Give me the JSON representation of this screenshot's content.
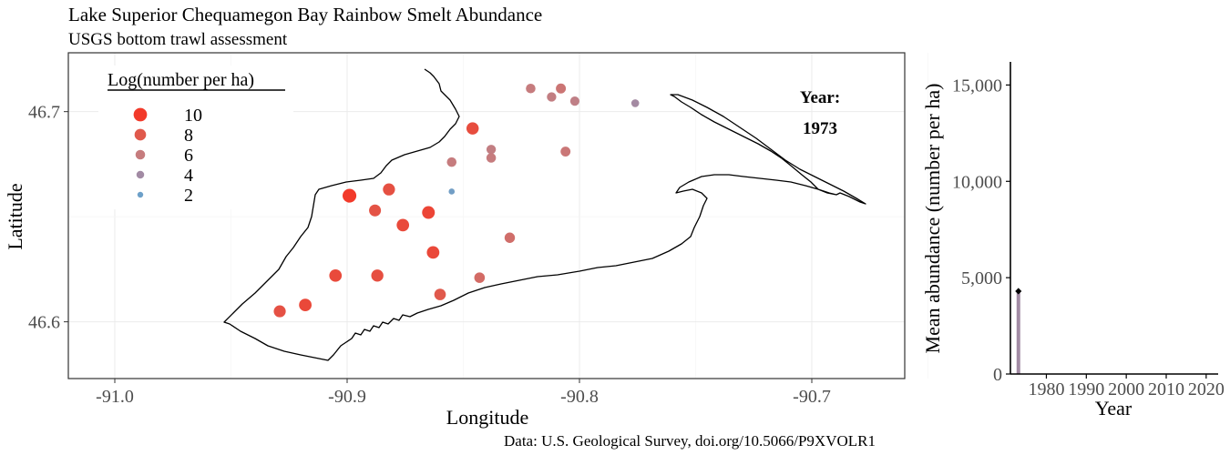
{
  "title": "Lake Superior Chequamegon Bay Rainbow Smelt Abundance",
  "subtitle": "USGS bottom trawl assessment",
  "caption": "Data: U.S. Geological Survey, doi.org/10.5066/P9XVOLR1",
  "year_label": "Year:",
  "year_value": "1973",
  "chart_data": [
    {
      "type": "scatter",
      "xlabel": "Longitude",
      "ylabel": "Latitude",
      "xlim": [
        -91.02,
        -90.66
      ],
      "ylim": [
        46.573,
        46.728
      ],
      "x_ticks": [
        -91.0,
        -90.9,
        -90.8,
        -90.7
      ],
      "x_tick_labels": [
        "-91.0",
        "-90.9",
        "-90.8",
        "-90.7"
      ],
      "y_ticks": [
        46.6,
        46.7
      ],
      "y_tick_labels": [
        "46.6",
        "46.7"
      ],
      "grid": true,
      "legend": {
        "title": "Log(number per ha)",
        "position": "top-left",
        "entries": [
          {
            "label": "10",
            "value": 10,
            "color": "#f23a2a"
          },
          {
            "label": "8",
            "value": 8,
            "color": "#e0594c"
          },
          {
            "label": "6",
            "value": 6,
            "color": "#c67c7e"
          },
          {
            "label": "4",
            "value": 4,
            "color": "#a28ba4"
          },
          {
            "label": "2",
            "value": 2,
            "color": "#6da0c9"
          }
        ]
      },
      "points": [
        {
          "lon": -90.821,
          "lat": 46.711,
          "log": 6.0
        },
        {
          "lon": -90.808,
          "lat": 46.711,
          "log": 6.4
        },
        {
          "lon": -90.812,
          "lat": 46.707,
          "log": 5.8
        },
        {
          "lon": -90.802,
          "lat": 46.705,
          "log": 5.6
        },
        {
          "lon": -90.776,
          "lat": 46.704,
          "log": 4.1
        },
        {
          "lon": -90.846,
          "lat": 46.692,
          "log": 8.8
        },
        {
          "lon": -90.838,
          "lat": 46.682,
          "log": 5.8
        },
        {
          "lon": -90.838,
          "lat": 46.678,
          "log": 6.0
        },
        {
          "lon": -90.806,
          "lat": 46.681,
          "log": 6.3
        },
        {
          "lon": -90.855,
          "lat": 46.676,
          "log": 6.0
        },
        {
          "lon": -90.855,
          "lat": 46.662,
          "log": 2.2
        },
        {
          "lon": -90.882,
          "lat": 46.663,
          "log": 8.6
        },
        {
          "lon": -90.899,
          "lat": 46.66,
          "log": 10.4
        },
        {
          "lon": -90.888,
          "lat": 46.653,
          "log": 8.4
        },
        {
          "lon": -90.865,
          "lat": 46.652,
          "log": 9.3
        },
        {
          "lon": -90.876,
          "lat": 46.646,
          "log": 9.0
        },
        {
          "lon": -90.83,
          "lat": 46.64,
          "log": 6.8
        },
        {
          "lon": -90.863,
          "lat": 46.633,
          "log": 9.1
        },
        {
          "lon": -90.905,
          "lat": 46.622,
          "log": 9.0
        },
        {
          "lon": -90.887,
          "lat": 46.622,
          "log": 8.7
        },
        {
          "lon": -90.843,
          "lat": 46.621,
          "log": 7.0
        },
        {
          "lon": -90.86,
          "lat": 46.613,
          "log": 8.0
        },
        {
          "lon": -90.918,
          "lat": 46.608,
          "log": 9.1
        },
        {
          "lon": -90.929,
          "lat": 46.605,
          "log": 8.5
        }
      ]
    },
    {
      "type": "bar",
      "xlabel": "Year",
      "ylabel": "Mean abundance (number per ha)",
      "ylim": [
        0,
        16200
      ],
      "xlim": [
        1971,
        2023
      ],
      "x_ticks": [
        1980,
        1990,
        2000,
        2010,
        2020
      ],
      "x_tick_labels": [
        "1980",
        "1990",
        "2000",
        "2010",
        "2020"
      ],
      "y_ticks": [
        0,
        5000,
        10000,
        15000
      ],
      "y_tick_labels": [
        "0",
        "5,000",
        "10,000",
        "15,000"
      ],
      "grid": false,
      "x": [
        1973
      ],
      "values": [
        4300
      ],
      "bar_color": "#a28ba4"
    }
  ]
}
